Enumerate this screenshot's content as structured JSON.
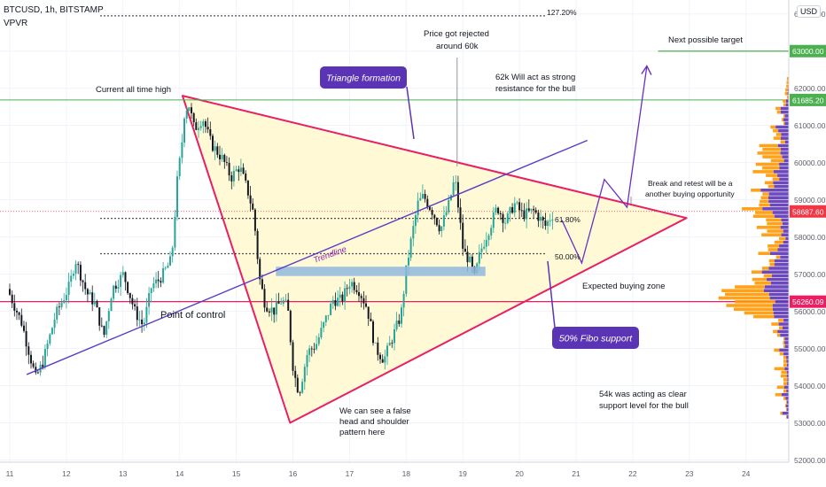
{
  "header": {
    "symbol": "BTCUSD, 1h, BITSTAMP",
    "indicator": "VPVR",
    "currency": "USD"
  },
  "chart_data": {
    "type": "candlestick",
    "symbol": "BTCUSD",
    "timeframe": "1h",
    "exchange": "BITSTAMP",
    "ylim": [
      51850,
      64400
    ],
    "xlim": [
      10.85,
      24.9
    ],
    "y_ticks": [
      "64000.00",
      "62000.00",
      "61000.00",
      "60000.00",
      "59000.00",
      "58000.00",
      "57000.00",
      "56000.00",
      "55000.00",
      "54000.00",
      "53000.00",
      "52000.00"
    ],
    "x_ticks": [
      "11",
      "12",
      "13",
      "14",
      "15",
      "16",
      "17",
      "18",
      "19",
      "20",
      "21",
      "22",
      "23",
      "24"
    ],
    "price_path": [
      [
        11.0,
        56600
      ],
      [
        11.25,
        55700
      ],
      [
        11.5,
        54200
      ],
      [
        11.62,
        54600
      ],
      [
        11.85,
        55900
      ],
      [
        12.1,
        56700
      ],
      [
        12.2,
        57400
      ],
      [
        12.4,
        56500
      ],
      [
        12.55,
        56200
      ],
      [
        12.7,
        55300
      ],
      [
        12.85,
        56600
      ],
      [
        13.05,
        57000
      ],
      [
        13.25,
        56000
      ],
      [
        13.4,
        55600
      ],
      [
        13.55,
        56700
      ],
      [
        13.65,
        56800
      ],
      [
        13.75,
        57000
      ],
      [
        13.9,
        57400
      ],
      [
        14.0,
        59500
      ],
      [
        14.08,
        60500
      ],
      [
        14.12,
        61300
      ],
      [
        14.2,
        61600
      ],
      [
        14.3,
        60900
      ],
      [
        14.45,
        61200
      ],
      [
        14.6,
        60500
      ],
      [
        14.8,
        60100
      ],
      [
        14.95,
        59600
      ],
      [
        15.1,
        59900
      ],
      [
        15.25,
        59200
      ],
      [
        15.35,
        58600
      ],
      [
        15.45,
        56900
      ],
      [
        15.55,
        56200
      ],
      [
        15.7,
        56000
      ],
      [
        15.85,
        56300
      ],
      [
        15.95,
        56100
      ],
      [
        16.05,
        54400
      ],
      [
        16.15,
        53800
      ],
      [
        16.3,
        54900
      ],
      [
        16.45,
        55100
      ],
      [
        16.6,
        55700
      ],
      [
        16.75,
        56300
      ],
      [
        16.9,
        56300
      ],
      [
        17.05,
        56800
      ],
      [
        17.2,
        56600
      ],
      [
        17.35,
        56100
      ],
      [
        17.5,
        55000
      ],
      [
        17.65,
        54700
      ],
      [
        17.8,
        55300
      ],
      [
        17.95,
        55900
      ],
      [
        18.05,
        57200
      ],
      [
        18.15,
        58100
      ],
      [
        18.25,
        58900
      ],
      [
        18.35,
        59100
      ],
      [
        18.5,
        58700
      ],
      [
        18.65,
        58200
      ],
      [
        18.8,
        58900
      ],
      [
        18.9,
        59600
      ],
      [
        19.0,
        58300
      ],
      [
        19.05,
        57600
      ],
      [
        19.15,
        57400
      ],
      [
        19.25,
        56900
      ],
      [
        19.35,
        57600
      ],
      [
        19.5,
        58200
      ],
      [
        19.65,
        58800
      ],
      [
        19.8,
        58400
      ],
      [
        19.95,
        58900
      ],
      [
        20.1,
        58600
      ],
      [
        20.3,
        58700
      ],
      [
        20.5,
        58300
      ],
      [
        20.62,
        58600
      ]
    ],
    "annotations": [
      {
        "text": "127.20%",
        "price": 63950
      },
      {
        "text": "Current all time high"
      },
      {
        "text": "Price got rejected around 60k"
      },
      {
        "text": "Next possible target"
      },
      {
        "text": "Triangle formation"
      },
      {
        "text": "62k Will act as strong resistance for the bull"
      },
      {
        "text": "Trendline"
      },
      {
        "text": "Break and retest will be a another buying opportunity"
      },
      {
        "text": "61.80%",
        "price": 58500
      },
      {
        "text": "50.00%",
        "price": 57550
      },
      {
        "text": "Expected buying zone"
      },
      {
        "text": "Point of control"
      },
      {
        "text": "50% Fibo support"
      },
      {
        "text": "54k was acting as clear support level for the bull"
      },
      {
        "text": "We can see a false head and shoulder pattern here"
      }
    ],
    "price_labels": [
      {
        "value": "63000.00",
        "price": 63000,
        "color": "#4caf50"
      },
      {
        "value": "61685.20",
        "price": 61685.2,
        "color": "#4caf50"
      },
      {
        "value": "58687.60",
        "price": 58687.6,
        "color": "#f23645"
      },
      {
        "value": "56260.09",
        "price": 56260.09,
        "color": "#e91e63"
      }
    ],
    "levels": {
      "all_time_high": 61685.2,
      "next_target": 63000,
      "current_price": 58687.6,
      "point_of_control": 56260.09,
      "fib_61_8": 58500,
      "fib_50": 57550,
      "fib_127_2": 63950
    },
    "triangle": [
      [
        14.05,
        61800
      ],
      [
        15.95,
        53000
      ],
      [
        22.95,
        58510
      ]
    ],
    "trendline": [
      [
        11.3,
        54300
      ],
      [
        21.2,
        60600
      ]
    ],
    "buy_zone": {
      "x0": 15.7,
      "x1": 19.4,
      "y0": 56950,
      "y1": 57200
    },
    "projection": [
      [
        20.75,
        58450
      ],
      [
        21.1,
        57300
      ],
      [
        21.5,
        59550
      ],
      [
        21.9,
        58800
      ],
      [
        22.25,
        62600
      ]
    ],
    "colors": {
      "up": "#26a69a",
      "down": "#131722",
      "triangle": "#e91e63",
      "triangle_fill": "#fff9d6",
      "trendline": "#5b3cc4",
      "label_bg": "#5b34b5",
      "buy_zone": "#8fb9dd",
      "ath_line": "#4caf50",
      "poc_line": "#e91e63",
      "vp_orange": "#ff9800",
      "vp_purple": "#5b34b5"
    }
  }
}
